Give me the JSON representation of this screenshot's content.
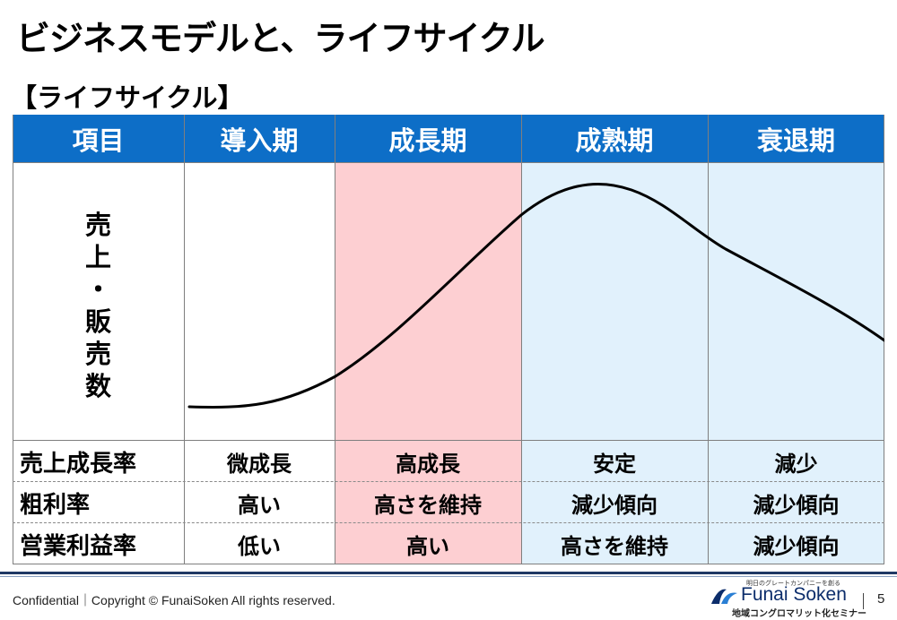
{
  "title": "ビジネスモデルと、ライフサイクル",
  "subtitle": "【ライフサイクル】",
  "table": {
    "headers": [
      "項目",
      "導入期",
      "成長期",
      "成熟期",
      "衰退期"
    ],
    "y_label_chars": [
      "売",
      "上",
      "・",
      "販",
      "売",
      "数"
    ],
    "rows": [
      {
        "label": "売上成長率",
        "cells": [
          "微成長",
          "高成長",
          "安定",
          "減少"
        ]
      },
      {
        "label": "粗利率",
        "cells": [
          "高い",
          "高さを維持",
          "減少傾向",
          "減少傾向"
        ]
      },
      {
        "label": "営業利益率",
        "cells": [
          "低い",
          "高い",
          "高さを維持",
          "減少傾向"
        ]
      }
    ],
    "colors": {
      "header": "#0d6ec7",
      "growth": "#fdcfd2",
      "later": "#e1f1fc"
    }
  },
  "footer": {
    "copyright": "Confidential｜Copyright © FunaiSoken All rights reserved.",
    "logo_tagline": "明日のグレートカンパニーを創る",
    "logo_name": "Funai Soken",
    "logo_sub": "地域コングロマリット化セミナー",
    "page_number": "5"
  }
}
